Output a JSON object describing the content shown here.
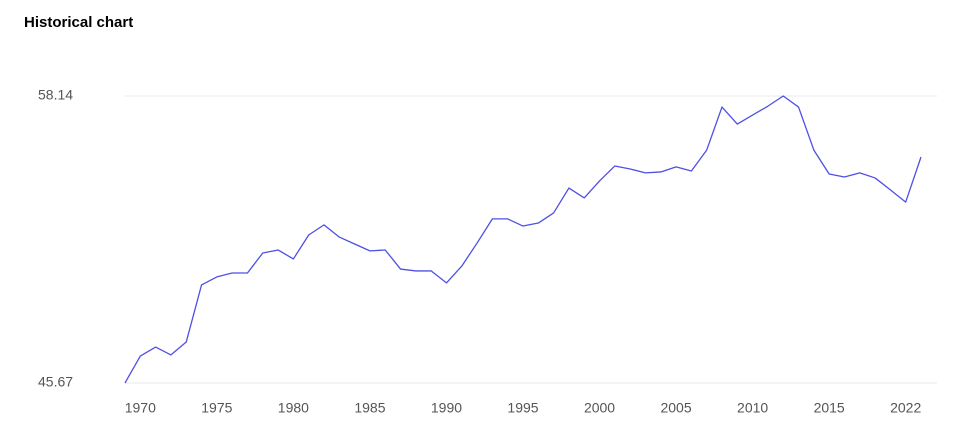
{
  "chart_data": {
    "type": "line",
    "title": "Historical chart",
    "categories": [
      null,
      "1970",
      null,
      null,
      null,
      null,
      "1975",
      null,
      null,
      null,
      null,
      "1980",
      null,
      null,
      null,
      null,
      "1985",
      null,
      null,
      null,
      null,
      "1990",
      null,
      null,
      null,
      null,
      "1995",
      null,
      null,
      null,
      null,
      "2000",
      null,
      null,
      null,
      null,
      "2005",
      null,
      null,
      null,
      null,
      "2010",
      null,
      null,
      null,
      null,
      "2015",
      null,
      null,
      null,
      null,
      "2022",
      null
    ],
    "series": [
      {
        "color": "#4f4fe6",
        "values": [
          45.67,
          46.84,
          47.23,
          46.89,
          47.45,
          49.93,
          50.28,
          50.45,
          50.45,
          51.32,
          51.45,
          51.06,
          52.1,
          52.54,
          52.01,
          51.71,
          51.41,
          51.45,
          50.62,
          50.54,
          50.54,
          50.02,
          50.75,
          51.75,
          52.8,
          52.8,
          52.49,
          52.62,
          53.06,
          54.14,
          53.71,
          54.45,
          55.1,
          54.97,
          54.8,
          54.84,
          55.06,
          54.88,
          55.79,
          57.66,
          56.92,
          57.31,
          57.7,
          58.14,
          57.66,
          55.79,
          54.75,
          54.62,
          54.8,
          54.58,
          54.06,
          53.53,
          55.49
        ]
      }
    ],
    "ylim": [
      45.67,
      58.14
    ],
    "yticks": [
      45.67,
      58.14
    ],
    "grid": true
  }
}
